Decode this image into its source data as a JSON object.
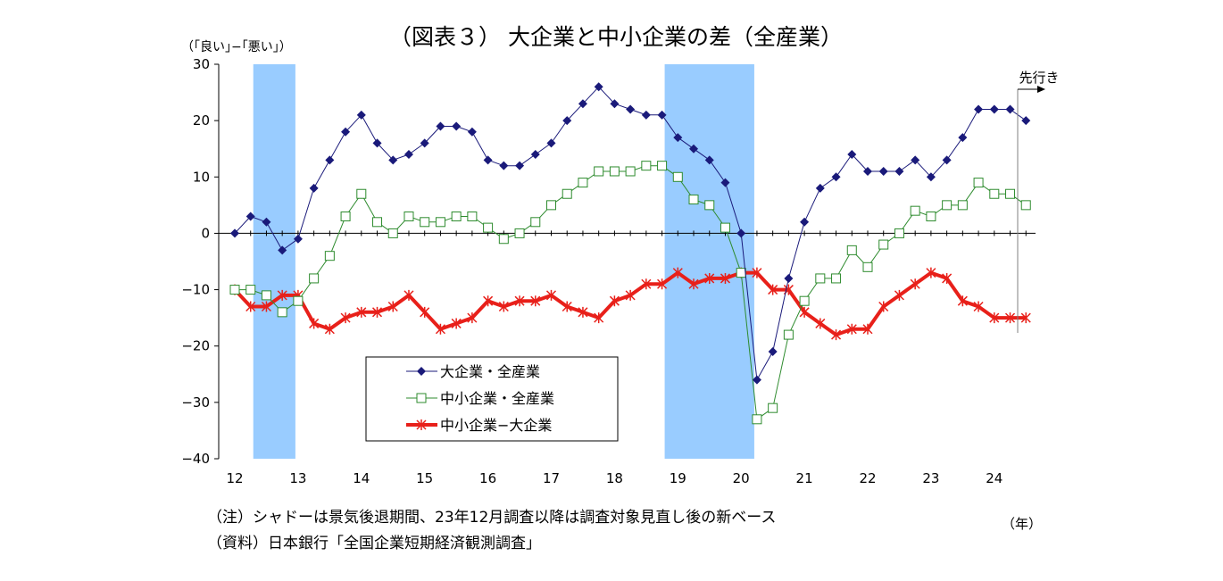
{
  "chart_data": {
    "type": "line",
    "title": "（図表３） 大企業と中小企業の差（全産業）",
    "ylabel": "（｢良い｣−｢悪い｣）",
    "xlabel": "（年）",
    "ylim": [
      -40,
      30
    ],
    "yticks": [
      30,
      20,
      10,
      0,
      -10,
      -20,
      -30,
      -40
    ],
    "ytick_labels": [
      "30",
      "20",
      "10",
      "0",
      "−10",
      "−20",
      "−30",
      "−40"
    ],
    "xlim": [
      12.0,
      24.75
    ],
    "xticks": [
      12,
      13,
      14,
      15,
      16,
      17,
      18,
      19,
      20,
      21,
      22,
      23,
      24
    ],
    "xtick_labels": [
      "12",
      "13",
      "14",
      "15",
      "16",
      "17",
      "18",
      "19",
      "20",
      "21",
      "22",
      "23",
      "24"
    ],
    "grid": false,
    "legend_position": "bottom-center",
    "shaded_ranges": [
      [
        12.25,
        13.0
      ],
      [
        18.75,
        20.25
      ]
    ],
    "forecast_label": "先行き",
    "x": [
      12.0,
      12.25,
      12.5,
      12.75,
      13.0,
      13.25,
      13.5,
      13.75,
      14.0,
      14.25,
      14.5,
      14.75,
      15.0,
      15.25,
      15.5,
      15.75,
      16.0,
      16.25,
      16.5,
      16.75,
      17.0,
      17.25,
      17.5,
      17.75,
      18.0,
      18.25,
      18.5,
      18.75,
      19.0,
      19.25,
      19.5,
      19.75,
      20.0,
      20.25,
      20.5,
      20.75,
      21.0,
      21.25,
      21.5,
      21.75,
      22.0,
      22.25,
      22.5,
      22.75,
      23.0,
      23.25,
      23.5,
      23.75,
      24.0,
      24.25,
      24.5
    ],
    "series": [
      {
        "name": "大企業・全産業",
        "color": "#1a1a7a",
        "marker": "diamond",
        "values": [
          0,
          3,
          2,
          -3,
          -1,
          8,
          13,
          18,
          21,
          16,
          13,
          14,
          16,
          19,
          19,
          18,
          13,
          12,
          12,
          14,
          16,
          20,
          23,
          26,
          23,
          22,
          21,
          21,
          17,
          15,
          13,
          9,
          0,
          -26,
          -21,
          -8,
          2,
          8,
          10,
          14,
          11,
          11,
          11,
          13,
          10,
          13,
          17,
          22,
          22,
          22,
          20
        ]
      },
      {
        "name": "中小企業・全産業",
        "color": "#2e8b2e",
        "marker": "square-open",
        "values": [
          -10,
          -10,
          -11,
          -14,
          -12,
          -8,
          -4,
          3,
          7,
          2,
          0,
          3,
          2,
          2,
          3,
          3,
          1,
          -1,
          0,
          2,
          5,
          7,
          9,
          11,
          11,
          11,
          12,
          12,
          10,
          6,
          5,
          1,
          -7,
          -33,
          -31,
          -18,
          -12,
          -8,
          -8,
          -3,
          -6,
          -2,
          0,
          4,
          3,
          5,
          5,
          9,
          7,
          7,
          5
        ]
      },
      {
        "name": "中小企業−大企業",
        "color": "#e8201a",
        "marker": "star",
        "values": [
          -10,
          -13,
          -13,
          -11,
          -11,
          -16,
          -17,
          -15,
          -14,
          -14,
          -13,
          -11,
          -14,
          -17,
          -16,
          -15,
          -12,
          -13,
          -12,
          -12,
          -11,
          -13,
          -14,
          -15,
          -12,
          -11,
          -9,
          -9,
          -7,
          -9,
          -8,
          -8,
          -7,
          -7,
          -10,
          -10,
          -14,
          -16,
          -18,
          -17,
          -17,
          -13,
          -11,
          -9,
          -7,
          -8,
          -12,
          -13,
          -15,
          -15,
          -15
        ]
      }
    ]
  },
  "notes": [
    "（注）シャドーは景気後退期間、23年12月調査以降は調査対象見直し後の新ベース",
    "（資料）日本銀行「全国企業短期経済観測調査」"
  ]
}
